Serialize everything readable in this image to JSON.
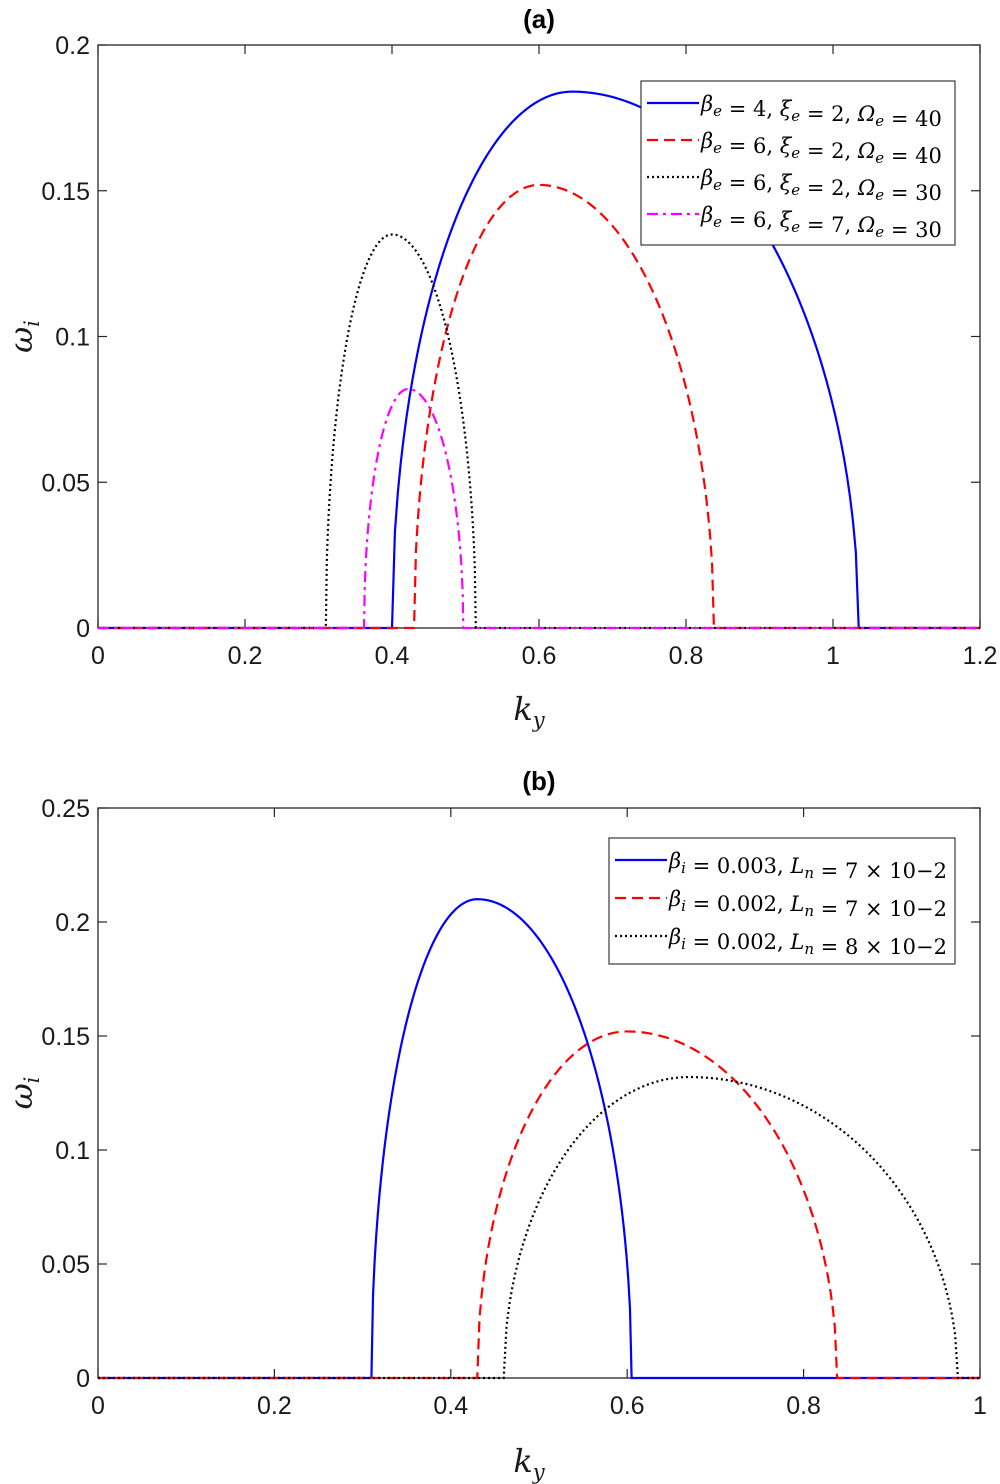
{
  "chart_data": [
    {
      "type": "line",
      "title": "(a)",
      "xlabel": "k_y",
      "ylabel": "ω_i",
      "xlim": [
        0,
        1.2
      ],
      "ylim": [
        0,
        0.2
      ],
      "xticks": [
        "0",
        "0.2",
        "0.4",
        "0.6",
        "0.8",
        "1",
        "1.2"
      ],
      "yticks": [
        "0",
        "0.05",
        "0.1",
        "0.15",
        "0.2"
      ],
      "grid": false,
      "legend_position": "top-right",
      "series": [
        {
          "name": "βe = 4, ξe = 2, Ωe = 40",
          "color": "#0000ff",
          "dash": "solid",
          "k_start": 0.4,
          "k_end": 1.035,
          "k_peak": 0.645,
          "peak": 0.184
        },
        {
          "name": "βe = 6, ξe = 2, Ωe = 40",
          "color": "#ff0000",
          "dash": "dashed",
          "k_start": 0.43,
          "k_end": 0.838,
          "k_peak": 0.6,
          "peak": 0.152
        },
        {
          "name": "βe = 6, ξe = 2, Ωe = 30",
          "color": "#000000",
          "dash": "dotted",
          "k_start": 0.31,
          "k_end": 0.514,
          "k_peak": 0.4,
          "peak": 0.135
        },
        {
          "name": "βe = 6, ξe = 7, Ωe = 30",
          "color": "#ff00ff",
          "dash": "dashdot",
          "k_start": 0.362,
          "k_end": 0.497,
          "k_peak": 0.422,
          "peak": 0.082
        }
      ]
    },
    {
      "type": "line",
      "title": "(b)",
      "xlabel": "k_y",
      "ylabel": "ω_i",
      "xlim": [
        0,
        1
      ],
      "ylim": [
        0,
        0.25
      ],
      "xticks": [
        "0",
        "0.2",
        "0.4",
        "0.6",
        "0.8",
        "1"
      ],
      "yticks": [
        "0",
        "0.05",
        "0.1",
        "0.15",
        "0.2",
        "0.25"
      ],
      "grid": false,
      "legend_position": "top-right",
      "series": [
        {
          "name": "βi = 0.003, Ln = 7 × 10−2",
          "color": "#0000ff",
          "dash": "solid",
          "k_start": 0.31,
          "k_end": 0.605,
          "k_peak": 0.43,
          "peak": 0.21
        },
        {
          "name": "βi = 0.002, Ln = 7 × 10−2",
          "color": "#ff0000",
          "dash": "dashed",
          "k_start": 0.43,
          "k_end": 0.838,
          "k_peak": 0.6,
          "peak": 0.152
        },
        {
          "name": "βi = 0.002, Ln = 8 × 10−2",
          "color": "#000000",
          "dash": "dotted",
          "k_start": 0.46,
          "k_end": 0.975,
          "k_peak": 0.67,
          "peak": 0.132
        }
      ]
    }
  ]
}
